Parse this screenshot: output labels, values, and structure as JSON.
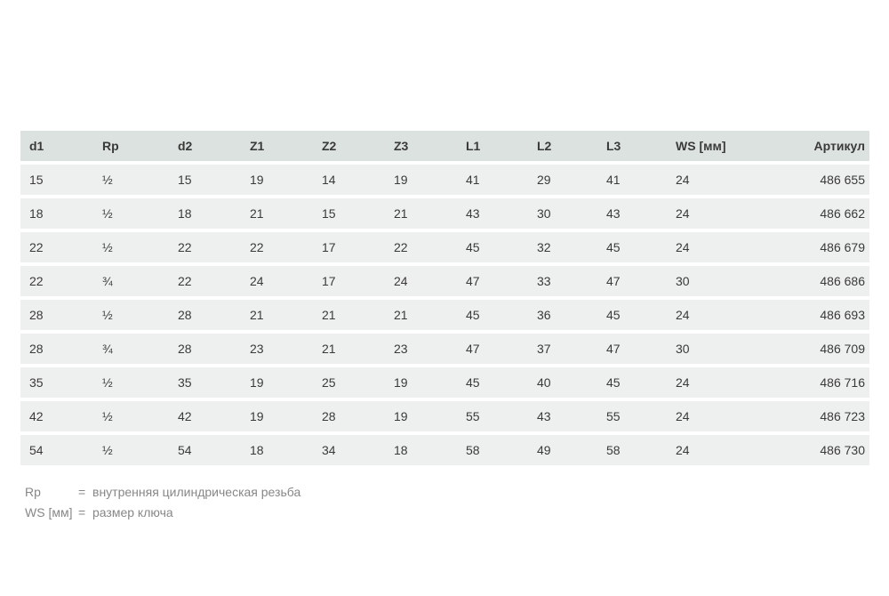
{
  "table": {
    "columns": [
      "d1",
      "Rp",
      "d2",
      "Z1",
      "Z2",
      "Z3",
      "L1",
      "L2",
      "L3",
      "WS [мм]",
      "Артикул"
    ],
    "rows": [
      [
        "15",
        "½",
        "15",
        "19",
        "14",
        "19",
        "41",
        "29",
        "41",
        "24",
        "486 655"
      ],
      [
        "18",
        "½",
        "18",
        "21",
        "15",
        "21",
        "43",
        "30",
        "43",
        "24",
        "486 662"
      ],
      [
        "22",
        "½",
        "22",
        "22",
        "17",
        "22",
        "45",
        "32",
        "45",
        "24",
        "486 679"
      ],
      [
        "22",
        "¾",
        "22",
        "24",
        "17",
        "24",
        "47",
        "33",
        "47",
        "30",
        "486 686"
      ],
      [
        "28",
        "½",
        "28",
        "21",
        "21",
        "21",
        "45",
        "36",
        "45",
        "24",
        "486 693"
      ],
      [
        "28",
        "¾",
        "28",
        "23",
        "21",
        "23",
        "47",
        "37",
        "47",
        "30",
        "486 709"
      ],
      [
        "35",
        "½",
        "35",
        "19",
        "25",
        "19",
        "45",
        "40",
        "45",
        "24",
        "486 716"
      ],
      [
        "42",
        "½",
        "42",
        "19",
        "28",
        "19",
        "55",
        "43",
        "55",
        "24",
        "486 723"
      ],
      [
        "54",
        "½",
        "54",
        "18",
        "34",
        "18",
        "58",
        "49",
        "58",
        "24",
        "486 730"
      ]
    ]
  },
  "legend": {
    "items": [
      {
        "term": "Rp",
        "eq": "=",
        "definition": "внутренняя цилиндрическая резьба"
      },
      {
        "term": "WS [мм]",
        "eq": "=",
        "definition": "размер ключа"
      }
    ]
  },
  "colors": {
    "header_bg": "#dce2df",
    "row_bg": "#edf0ef",
    "table_text": "#3a3a39",
    "legend_text": "#878787"
  }
}
